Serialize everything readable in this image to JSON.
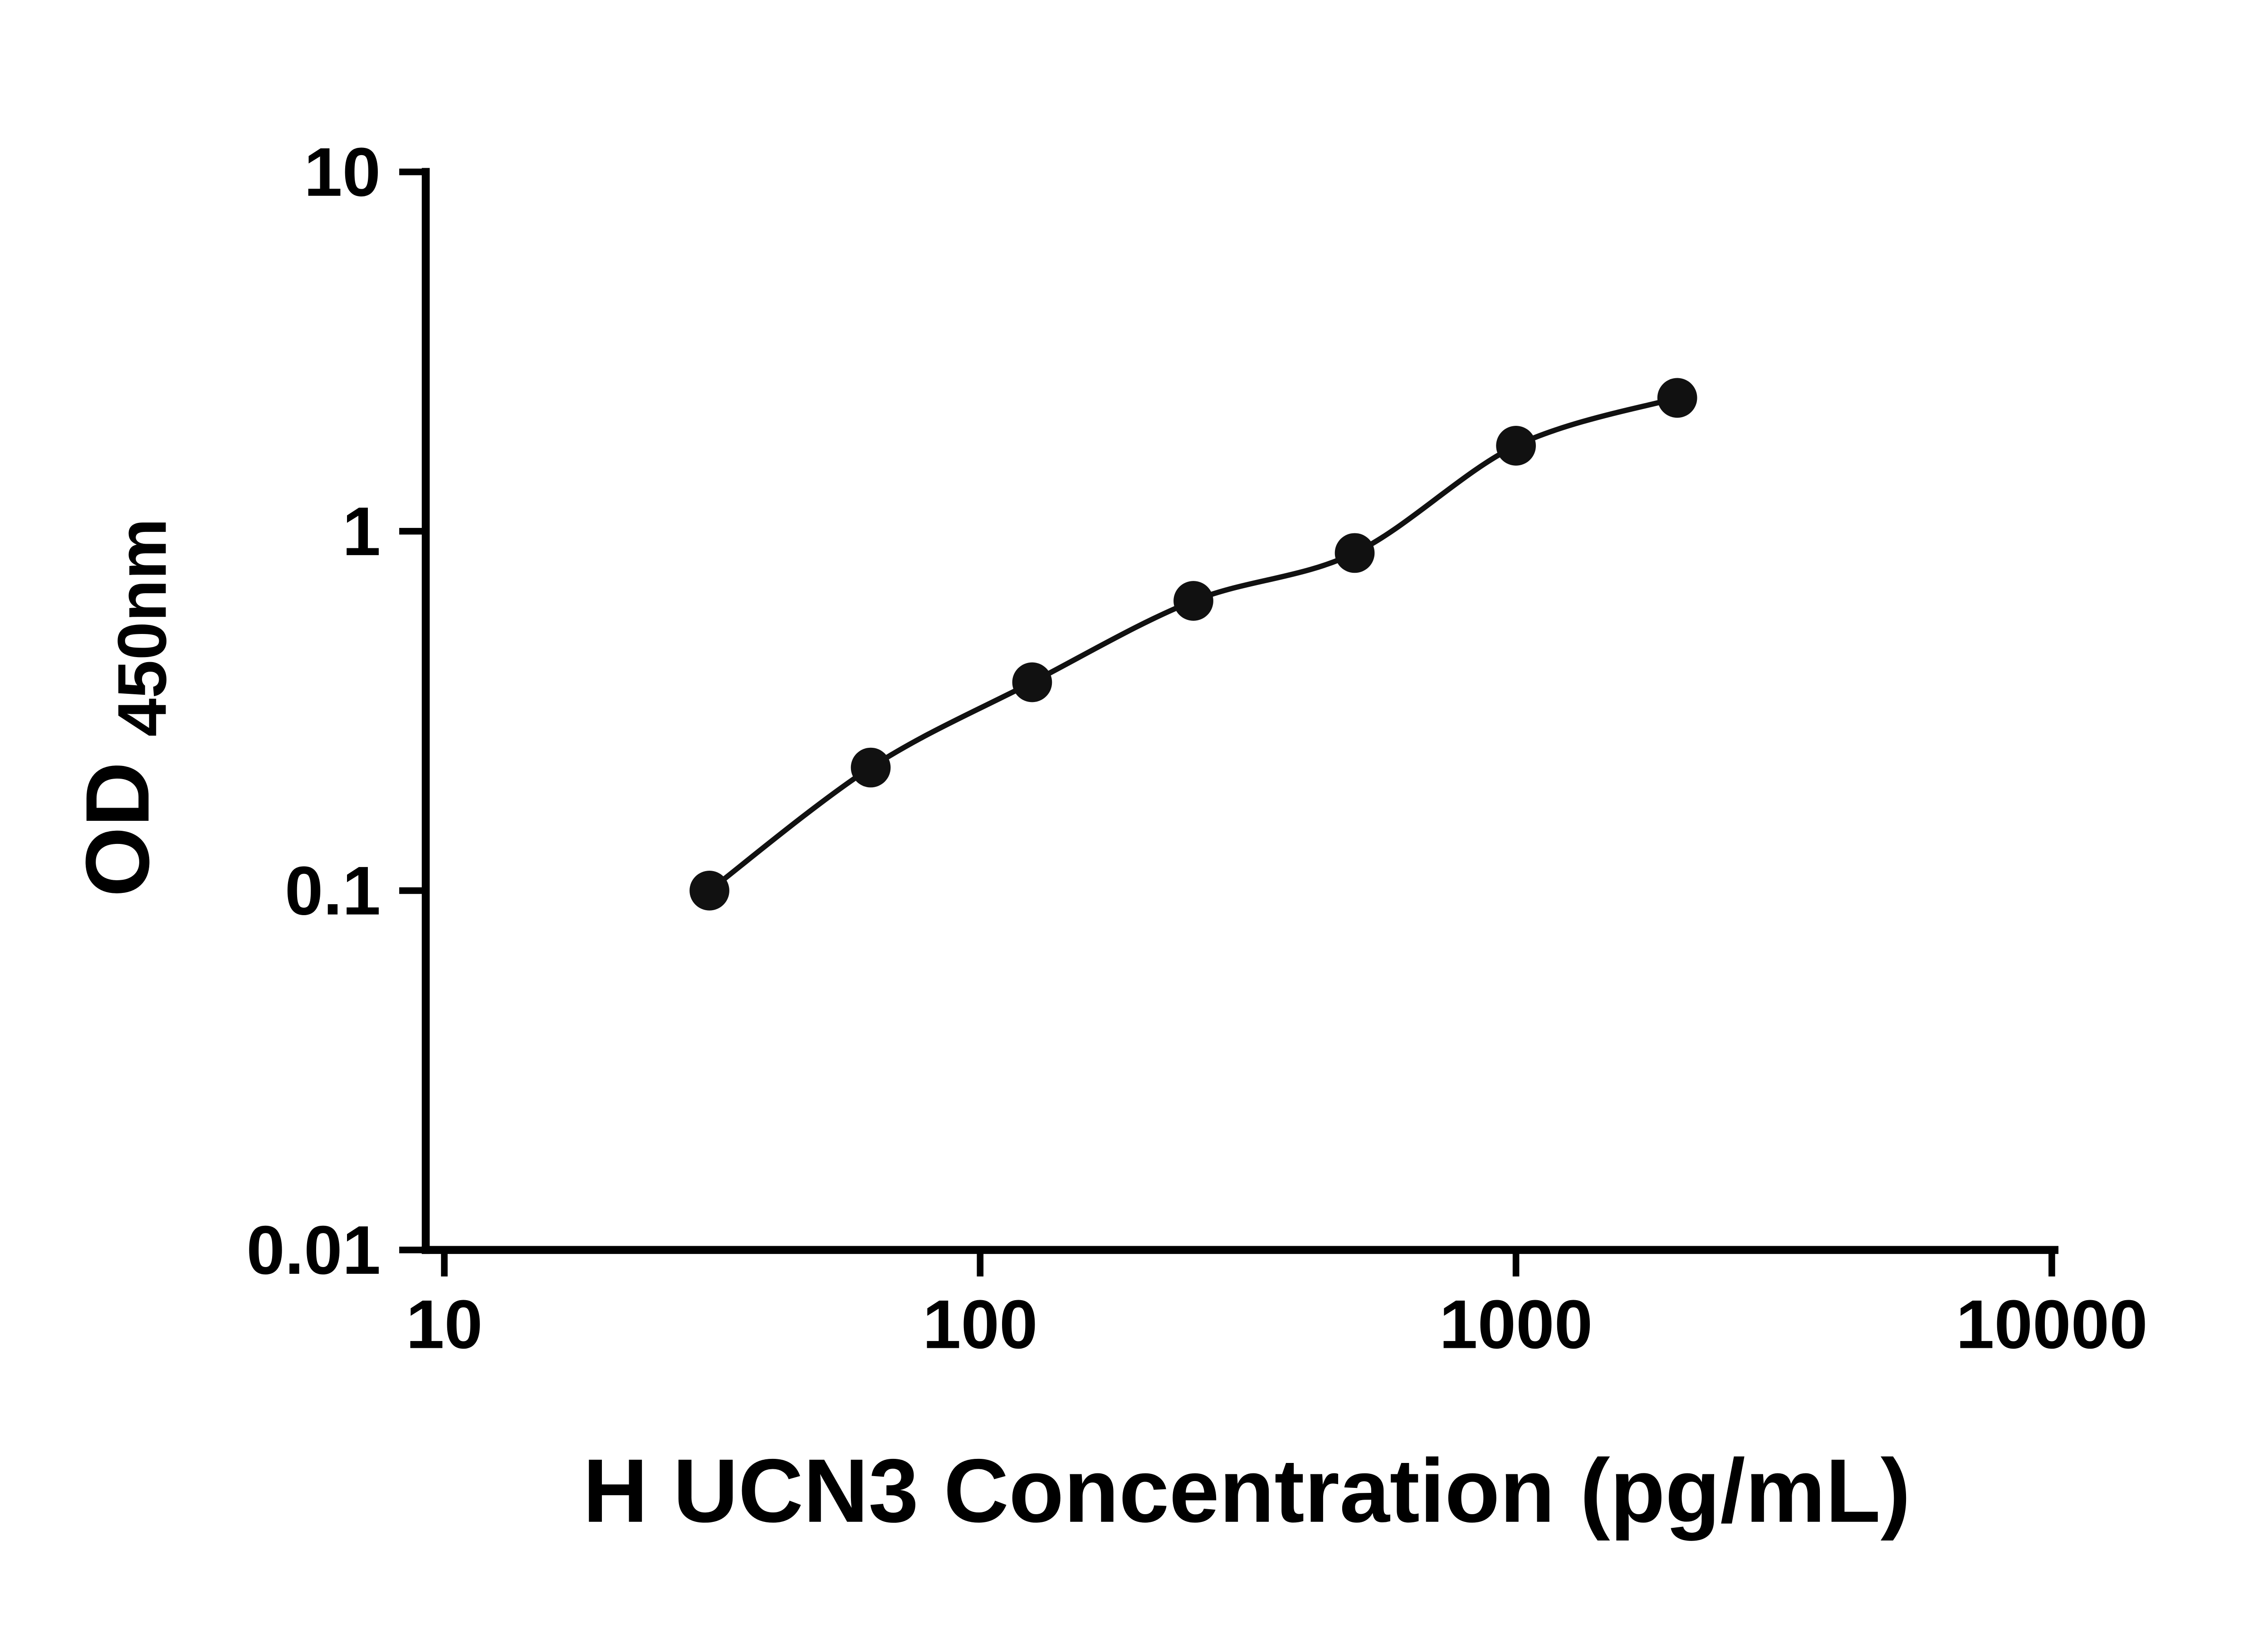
{
  "chart_data": {
    "type": "scatter",
    "curve": "smooth-fit-line",
    "title": "",
    "xlabel": "H UCN3 Concentration (pg/mL)",
    "ylabel": "OD",
    "ylabel_subscript": "450nm",
    "x_scale": "log10",
    "y_scale": "log10",
    "xlim": [
      10,
      10000
    ],
    "ylim": [
      0.01,
      10
    ],
    "x_ticks": [
      10,
      100,
      1000,
      10000
    ],
    "x_tick_labels": [
      "10",
      "100",
      "1000",
      "10000"
    ],
    "y_ticks": [
      0.01,
      0.1,
      1,
      10
    ],
    "y_tick_labels": [
      "0.01",
      "0.1",
      "1",
      "10"
    ],
    "points": [
      {
        "x": 31.25,
        "y": 0.1
      },
      {
        "x": 62.5,
        "y": 0.22
      },
      {
        "x": 125,
        "y": 0.38
      },
      {
        "x": 250,
        "y": 0.64
      },
      {
        "x": 500,
        "y": 0.87
      },
      {
        "x": 1000,
        "y": 1.73
      },
      {
        "x": 2000,
        "y": 2.35
      }
    ],
    "grid": false,
    "legend": "none",
    "marker_color": "#111111",
    "line_color": "#111111",
    "axis_color": "#000000",
    "background": "#ffffff"
  }
}
